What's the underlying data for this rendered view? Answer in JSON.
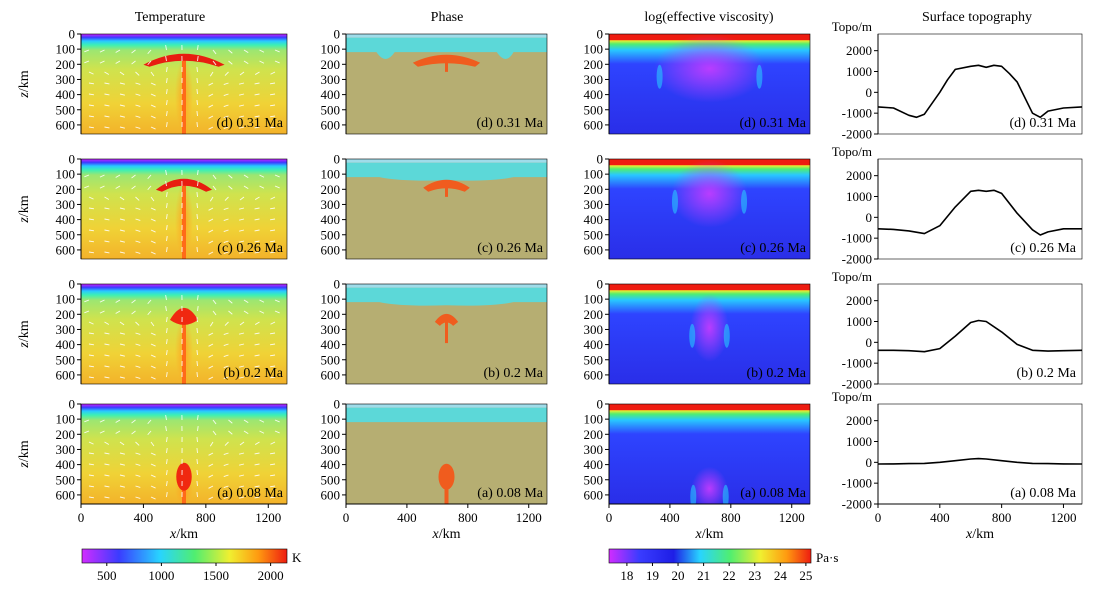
{
  "figure": {
    "column_titles": [
      "Temperature",
      "Phase",
      "log(effective viscosity)",
      "Surface topography"
    ],
    "x_label": "x/km",
    "x_label_italic": "x",
    "x_label_unit": "/km",
    "y_label": "z/km",
    "y_label_italic": "z",
    "y_label_unit": "/km",
    "topo_axis_label": "Topo/m",
    "colors": {
      "mantle_phase": "#b6ae72",
      "lithosphere_phase": "#5cd8d8",
      "plume_phase": "#f05c1e",
      "axis": "#000000"
    }
  },
  "chart_data": [
    {
      "type": "heatmap",
      "title": "Temperature",
      "xlabel": "x/km",
      "ylabel": "z/km",
      "xlim": [
        0,
        1320
      ],
      "ylim": [
        0,
        660
      ],
      "x_ticks": [
        "0",
        "400",
        "800",
        "1200"
      ],
      "y_ticks": [
        "0",
        "100",
        "200",
        "300",
        "400",
        "500",
        "600"
      ],
      "panels": [
        {
          "label": "(d) 0.31 Ma",
          "time_Ma": 0.31,
          "plume_head_depth_km": 150,
          "plume_head_halfwidth_km": 260
        },
        {
          "label": "(c) 0.26 Ma",
          "time_Ma": 0.26,
          "plume_head_depth_km": 150,
          "plume_head_halfwidth_km": 180
        },
        {
          "label": "(b) 0.2 Ma",
          "time_Ma": 0.2,
          "plume_head_depth_km": 210,
          "plume_head_halfwidth_km": 90
        },
        {
          "label": "(a) 0.08 Ma",
          "time_Ma": 0.08,
          "plume_head_depth_km": 480,
          "plume_head_halfwidth_km": 55
        }
      ],
      "colorbar": {
        "unit": "K",
        "range": [
          273,
          2150
        ],
        "ticks": [
          "500",
          "1000",
          "1500",
          "2000"
        ],
        "tick_values": [
          500,
          1000,
          1500,
          2000
        ]
      }
    },
    {
      "type": "heatmap",
      "title": "Phase",
      "xlabel": "x/km",
      "ylabel": "z/km",
      "xlim": [
        0,
        1320
      ],
      "ylim": [
        0,
        660
      ],
      "x_ticks": [
        "0",
        "400",
        "800",
        "1200"
      ],
      "y_ticks": [
        "0",
        "100",
        "200",
        "300",
        "400",
        "500",
        "600"
      ],
      "panels": [
        {
          "label": "(d) 0.31 Ma",
          "time_Ma": 0.31
        },
        {
          "label": "(c) 0.26 Ma",
          "time_Ma": 0.26
        },
        {
          "label": "(b) 0.2 Ma",
          "time_Ma": 0.2
        },
        {
          "label": "(a) 0.08 Ma",
          "time_Ma": 0.08
        }
      ]
    },
    {
      "type": "heatmap",
      "title": "log(effective viscosity)",
      "xlabel": "x/km",
      "ylabel": "z/km",
      "xlim": [
        0,
        1320
      ],
      "ylim": [
        0,
        660
      ],
      "x_ticks": [
        "0",
        "400",
        "800",
        "1200"
      ],
      "y_ticks": [
        "0",
        "100",
        "200",
        "300",
        "400",
        "500",
        "600"
      ],
      "panels": [
        {
          "label": "(d) 0.31 Ma",
          "time_Ma": 0.31
        },
        {
          "label": "(c) 0.26 Ma",
          "time_Ma": 0.26
        },
        {
          "label": "(b) 0.2 Ma",
          "time_Ma": 0.2
        },
        {
          "label": "(a) 0.08 Ma",
          "time_Ma": 0.08
        }
      ],
      "colorbar": {
        "unit": "Pa·s",
        "range": [
          17.3,
          25.2
        ],
        "ticks": [
          "18",
          "19",
          "20",
          "21",
          "22",
          "23",
          "24",
          "25"
        ],
        "tick_values": [
          18,
          19,
          20,
          21,
          22,
          23,
          24,
          25
        ]
      }
    },
    {
      "type": "line",
      "title": "Surface topography",
      "xlabel": "x/km",
      "ylabel": "Topo/m",
      "xlim": [
        0,
        1320
      ],
      "ylim": [
        -2000,
        2800
      ],
      "x_ticks": [
        "0",
        "400",
        "800",
        "1200"
      ],
      "y_ticks": [
        "-2000",
        "-1000",
        "0",
        "1000",
        "2000"
      ],
      "panels": [
        {
          "label": "(d) 0.31 Ma",
          "x": [
            0,
            100,
            200,
            250,
            300,
            400,
            450,
            500,
            600,
            650,
            700,
            750,
            800,
            850,
            900,
            1000,
            1050,
            1100,
            1200,
            1320
          ],
          "y": [
            -700,
            -750,
            -1100,
            -1200,
            -1050,
            0,
            600,
            1100,
            1250,
            1300,
            1200,
            1300,
            1250,
            900,
            500,
            -1000,
            -1200,
            -900,
            -750,
            -700
          ]
        },
        {
          "label": "(c) 0.26 Ma",
          "x": [
            0,
            100,
            200,
            300,
            400,
            500,
            600,
            650,
            700,
            750,
            800,
            900,
            1000,
            1050,
            1100,
            1200,
            1320
          ],
          "y": [
            -550,
            -580,
            -650,
            -780,
            -400,
            500,
            1250,
            1300,
            1250,
            1300,
            1150,
            200,
            -600,
            -850,
            -700,
            -550,
            -550
          ]
        },
        {
          "label": "(b) 0.2 Ma",
          "x": [
            0,
            100,
            200,
            300,
            400,
            500,
            600,
            650,
            700,
            800,
            900,
            1000,
            1100,
            1200,
            1320
          ],
          "y": [
            -380,
            -380,
            -400,
            -450,
            -300,
            300,
            950,
            1050,
            1000,
            500,
            -100,
            -380,
            -420,
            -400,
            -380
          ]
        },
        {
          "label": "(a) 0.08 Ma",
          "x": [
            0,
            100,
            200,
            300,
            400,
            500,
            600,
            650,
            700,
            800,
            900,
            1000,
            1100,
            1200,
            1320
          ],
          "y": [
            -80,
            -75,
            -60,
            -50,
            0,
            80,
            160,
            180,
            160,
            80,
            0,
            -50,
            -60,
            -75,
            -80
          ]
        }
      ]
    }
  ]
}
